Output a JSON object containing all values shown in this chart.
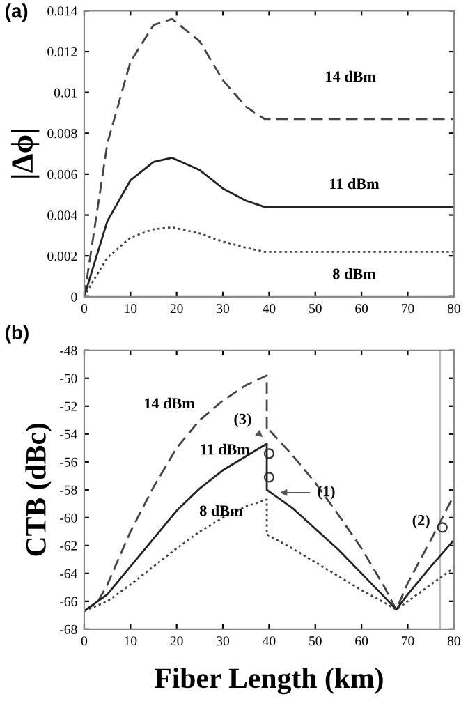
{
  "chart_data": [
    {
      "type": "line",
      "title": "(a)",
      "ylabel": "|Δϕ|",
      "xlim": [
        0,
        80
      ],
      "xticks": [
        0,
        10,
        20,
        30,
        40,
        50,
        60,
        70,
        80
      ],
      "ylim": [
        0,
        0.014
      ],
      "yticks": [
        0,
        0.002,
        0.004,
        0.006,
        0.008,
        0.01,
        0.012,
        0.014
      ],
      "grid": false,
      "legend": false,
      "series": [
        {
          "name": "14 dBm",
          "color": "#444444",
          "line_style": "dashed",
          "x": [
            0,
            2,
            5,
            10,
            15,
            19,
            25,
            30,
            35,
            39,
            40,
            80
          ],
          "values": [
            0,
            0.003,
            0.0075,
            0.0115,
            0.0133,
            0.0136,
            0.0125,
            0.0106,
            0.0093,
            0.0087,
            0.0087,
            0.0087
          ]
        },
        {
          "name": "11 dBm",
          "color": "#222222",
          "line_style": "solid",
          "x": [
            0,
            2,
            5,
            10,
            15,
            19,
            25,
            30,
            35,
            39,
            40,
            80
          ],
          "values": [
            0,
            0.0015,
            0.0037,
            0.0057,
            0.0066,
            0.0068,
            0.0062,
            0.0053,
            0.0047,
            0.0044,
            0.0044,
            0.0044
          ]
        },
        {
          "name": "8 dBm",
          "color": "#444444",
          "line_style": "dotted",
          "x": [
            0,
            2,
            5,
            10,
            15,
            19,
            25,
            30,
            35,
            39,
            40,
            80
          ],
          "values": [
            0,
            0.0008,
            0.0019,
            0.0029,
            0.0033,
            0.0034,
            0.0031,
            0.0027,
            0.0024,
            0.0022,
            0.0022,
            0.0022
          ]
        }
      ]
    },
    {
      "type": "line",
      "title": "(b)",
      "xlabel": "Fiber Length (km)",
      "ylabel": "CTB (dBc)",
      "xlim": [
        0,
        80
      ],
      "xticks": [
        0,
        10,
        20,
        30,
        40,
        50,
        60,
        70,
        80
      ],
      "ylim": [
        -68,
        -48
      ],
      "yticks": [
        -68,
        -66,
        -64,
        -62,
        -60,
        -58,
        -56,
        -54,
        -52,
        -50,
        -48
      ],
      "grid": false,
      "legend": false,
      "series": [
        {
          "name": "14 dBm",
          "color": "#444444",
          "line_style": "dashed",
          "x": [
            0,
            3,
            5,
            10,
            15,
            20,
            25,
            30,
            35,
            39.5,
            39.5,
            40,
            45,
            50,
            55,
            60,
            65,
            67.5,
            70,
            75,
            80
          ],
          "values": [
            -66.7,
            -66,
            -64.8,
            -61,
            -57.8,
            -55,
            -53,
            -51.6,
            -50.5,
            -49.8,
            -53.8,
            -53.7,
            -55.5,
            -57.5,
            -59.8,
            -62.2,
            -65,
            -66.6,
            -64.7,
            -61.6,
            -58.4
          ]
        },
        {
          "name": "11 dBm",
          "color": "#222222",
          "line_style": "solid",
          "x": [
            0,
            5,
            10,
            15,
            20,
            25,
            30,
            35,
            39.5,
            39.5,
            45,
            50,
            55,
            60,
            65,
            67.5,
            70,
            75,
            80
          ],
          "values": [
            -66.7,
            -65.5,
            -63.5,
            -61.5,
            -59.5,
            -57.9,
            -56.6,
            -55.6,
            -54.7,
            -58,
            -59.3,
            -60.8,
            -62.3,
            -64,
            -65.7,
            -66.6,
            -65.5,
            -63.5,
            -61.6
          ]
        },
        {
          "name": "8 dBm",
          "color": "#444444",
          "line_style": "dotted",
          "x": [
            0,
            5,
            10,
            15,
            20,
            25,
            30,
            35,
            39.5,
            39.5,
            45,
            50,
            55,
            60,
            65,
            67.5,
            70,
            75,
            80
          ],
          "values": [
            -66.7,
            -66,
            -64.8,
            -63.5,
            -62.2,
            -61,
            -60,
            -59.2,
            -58.7,
            -61.2,
            -62.2,
            -63.2,
            -64.2,
            -65.2,
            -66.1,
            -66.6,
            -66,
            -64.8,
            -63.6
          ]
        },
        {
          "type": "scatter",
          "marker": "circle",
          "color": "#333333",
          "x": [
            40,
            40,
            77.5
          ],
          "values": [
            -55.4,
            -57.1,
            -60.7
          ]
        }
      ],
      "ref_lines": [
        {
          "axis": "x",
          "value": 77,
          "color": "#bbbbbb"
        }
      ],
      "annotations": [
        {
          "text": "(3)",
          "x": 39.3,
          "y": -54.4
        },
        {
          "text": "(1)",
          "x": 41.5,
          "y": -58.2
        },
        {
          "text": "(2)",
          "x": 77.5,
          "y": -60.7
        }
      ]
    }
  ]
}
